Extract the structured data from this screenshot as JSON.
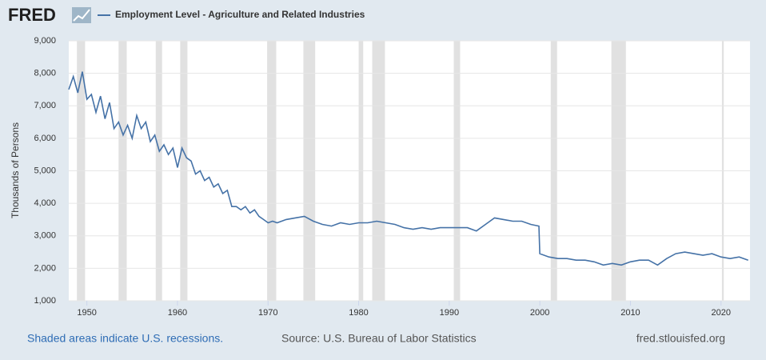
{
  "chart_data": {
    "type": "line",
    "brand": "FRED",
    "y_label": "Thousands of Persons",
    "note": "Shaded areas indicate U.S. recessions.",
    "source": "Source: U.S. Bureau of Labor Statistics",
    "site": "fred.stlouisfed.org",
    "xlim": [
      1948,
      2023.2
    ],
    "xticks": [
      1950,
      1960,
      1970,
      1980,
      1990,
      2000,
      2010,
      2020
    ],
    "ylim": [
      1000,
      9000
    ],
    "yticks": [
      {
        "value": 1000,
        "label": "1,000"
      },
      {
        "value": 2000,
        "label": "2,000"
      },
      {
        "value": 3000,
        "label": "3,000"
      },
      {
        "value": 4000,
        "label": "4,000"
      },
      {
        "value": 5000,
        "label": "5,000"
      },
      {
        "value": 6000,
        "label": "6,000"
      },
      {
        "value": 7000,
        "label": "7,000"
      },
      {
        "value": 8000,
        "label": "8,000"
      },
      {
        "value": 9000,
        "label": "9,000"
      }
    ],
    "grid": true,
    "recessions": [
      [
        1948.9,
        1949.8
      ],
      [
        1953.5,
        1954.4
      ],
      [
        1957.6,
        1958.3
      ],
      [
        1960.3,
        1961.1
      ],
      [
        1969.9,
        1970.9
      ],
      [
        1973.9,
        1975.2
      ],
      [
        1980.0,
        1980.5
      ],
      [
        1981.5,
        1982.9
      ],
      [
        1990.5,
        1991.2
      ],
      [
        2001.2,
        2001.9
      ],
      [
        2007.9,
        2009.5
      ],
      [
        2020.1,
        2020.3
      ]
    ],
    "recession_color": "#e1e1e1",
    "x": [
      1948.0,
      1948.5,
      1949.0,
      1949.5,
      1950.0,
      1950.5,
      1951.0,
      1951.5,
      1952.0,
      1952.5,
      1953.0,
      1953.5,
      1954.0,
      1954.5,
      1955.0,
      1955.5,
      1956.0,
      1956.5,
      1957.0,
      1957.5,
      1958.0,
      1958.5,
      1959.0,
      1959.5,
      1960.0,
      1960.5,
      1961.0,
      1961.5,
      1962.0,
      1962.5,
      1963.0,
      1963.5,
      1964.0,
      1964.5,
      1965.0,
      1965.5,
      1966.0,
      1966.5,
      1967.0,
      1967.5,
      1968.0,
      1968.5,
      1969.0,
      1969.5,
      1970.0,
      1970.5,
      1971,
      1972,
      1973,
      1974,
      1975,
      1976,
      1977,
      1978,
      1979,
      1980,
      1981,
      1982,
      1983,
      1984,
      1985,
      1986,
      1987,
      1988,
      1989,
      1990,
      1991,
      1992,
      1993,
      1994,
      1995,
      1996,
      1997,
      1998,
      1999,
      1999.9,
      2000,
      2001,
      2002,
      2003,
      2004,
      2005,
      2006,
      2007,
      2008,
      2009,
      2010,
      2011,
      2012,
      2013,
      2014,
      2015,
      2016,
      2017,
      2018,
      2019,
      2020,
      2021,
      2022,
      2023
    ],
    "series": [
      {
        "name": "Employment Level - Agriculture and Related Industries",
        "color": "#4572a7",
        "values": [
          7500,
          7900,
          7400,
          8050,
          7200,
          7350,
          6800,
          7300,
          6600,
          7100,
          6300,
          6500,
          6100,
          6400,
          6000,
          6700,
          6300,
          6500,
          5900,
          6100,
          5600,
          5800,
          5500,
          5700,
          5100,
          5700,
          5400,
          5300,
          4900,
          5000,
          4700,
          4800,
          4500,
          4600,
          4300,
          4400,
          3900,
          3900,
          3800,
          3900,
          3700,
          3800,
          3600,
          3500,
          3400,
          3450,
          3400,
          3500,
          3550,
          3600,
          3450,
          3350,
          3300,
          3400,
          3350,
          3400,
          3400,
          3450,
          3400,
          3350,
          3250,
          3200,
          3250,
          3200,
          3250,
          3250,
          3250,
          3250,
          3150,
          3350,
          3550,
          3500,
          3450,
          3450,
          3350,
          3300,
          2450,
          2350,
          2300,
          2300,
          2250,
          2250,
          2200,
          2100,
          2150,
          2100,
          2200,
          2250,
          2250,
          2100,
          2300,
          2450,
          2500,
          2450,
          2400,
          2450,
          2350,
          2300,
          2350,
          2250
        ]
      }
    ]
  }
}
